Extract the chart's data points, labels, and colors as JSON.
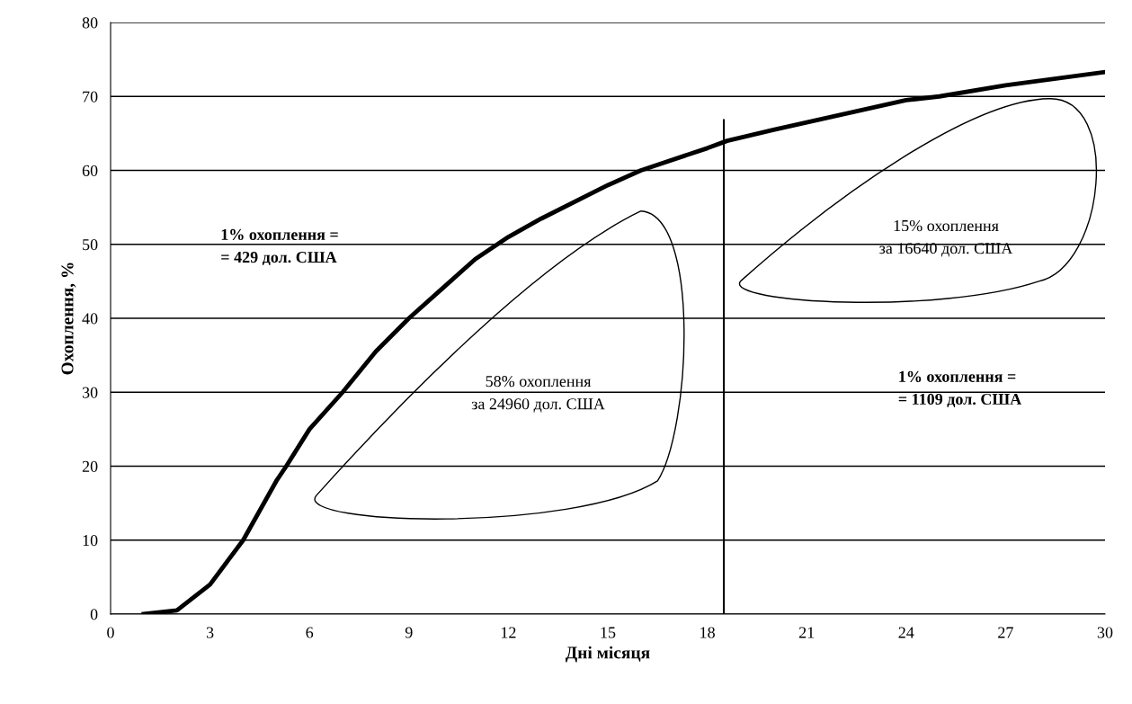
{
  "chart_data": {
    "type": "line",
    "xlabel": "Дні місяця",
    "ylabel": "Охоплення, %",
    "x": [
      1,
      2,
      3,
      4,
      5,
      5.3,
      6,
      7,
      8,
      9,
      10,
      11,
      12,
      13,
      15,
      16,
      18,
      18.6,
      20,
      21,
      24,
      25,
      27,
      30
    ],
    "series": [
      {
        "color": "#000000",
        "values": [
          0,
          0.5,
          4,
          10,
          18,
          20,
          25,
          30,
          35.5,
          40,
          44,
          48,
          51,
          53.5,
          58,
          60,
          63,
          64,
          65.5,
          66.5,
          69.5,
          70,
          71.5,
          73.3
        ]
      }
    ],
    "xlim": [
      0,
      30
    ],
    "xticks": [
      0,
      3,
      6,
      9,
      12,
      15,
      18,
      21,
      24,
      27,
      30
    ],
    "ylim": [
      0,
      80
    ],
    "yticks": [
      0,
      10,
      20,
      30,
      40,
      50,
      60,
      70,
      80
    ],
    "grid": "y",
    "marker": "none",
    "line_style": "solid",
    "ref_lines": [
      {
        "axis": "x",
        "value": 18.5,
        "color": "#000000"
      }
    ],
    "annotations": [
      "1% охоплення =\n= 429 дол. США",
      "58% охоплення\nза 24960 дол. США",
      "15% охоплення\nза 16640 дол. США",
      "1% охоплення =\n= 1109 дол. США"
    ]
  }
}
